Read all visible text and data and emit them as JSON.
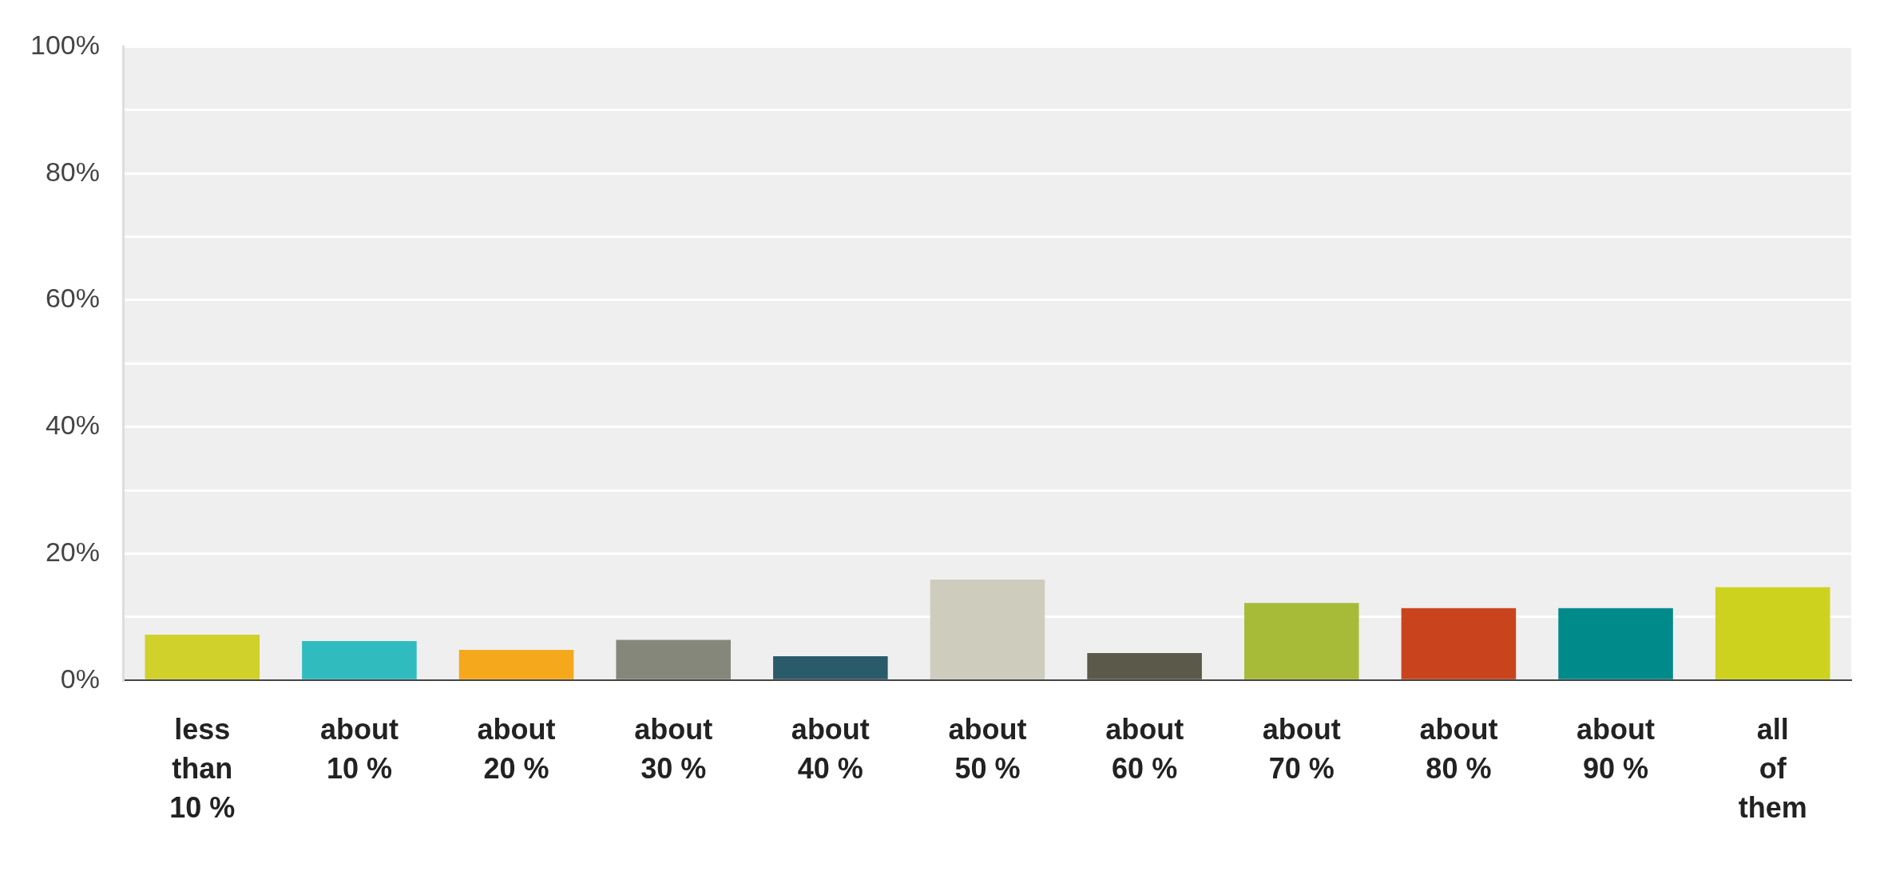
{
  "chart_data": {
    "type": "bar",
    "categories": [
      "less than 10 %",
      "about 10 %",
      "about 20 %",
      "about 30 %",
      "about 40 %",
      "about 50 %",
      "about 60 %",
      "about 70 %",
      "about 80 %",
      "about 90 %",
      "all of them"
    ],
    "values": [
      7.2,
      6.2,
      4.8,
      6.4,
      3.8,
      15.9,
      4.3,
      12.2,
      11.4,
      11.4,
      14.7
    ],
    "colors": [
      "#d0d12a",
      "#30bcbf",
      "#f6a81d",
      "#85877a",
      "#2a5b6b",
      "#cecdbd",
      "#5a594a",
      "#a8bb38",
      "#c9441d",
      "#008a8a",
      "#cdd21f"
    ],
    "ylim": [
      0,
      100
    ],
    "yticks": [
      {
        "value": 0,
        "label": "0%"
      },
      {
        "value": 10,
        "label": null
      },
      {
        "value": 20,
        "label": "20%"
      },
      {
        "value": 30,
        "label": null
      },
      {
        "value": 40,
        "label": "40%"
      },
      {
        "value": 50,
        "label": null
      },
      {
        "value": 60,
        "label": "60%"
      },
      {
        "value": 70,
        "label": null
      },
      {
        "value": 80,
        "label": "80%"
      },
      {
        "value": 90,
        "label": null
      },
      {
        "value": 100,
        "label": "100%"
      }
    ],
    "grid": "y",
    "legend": false
  }
}
